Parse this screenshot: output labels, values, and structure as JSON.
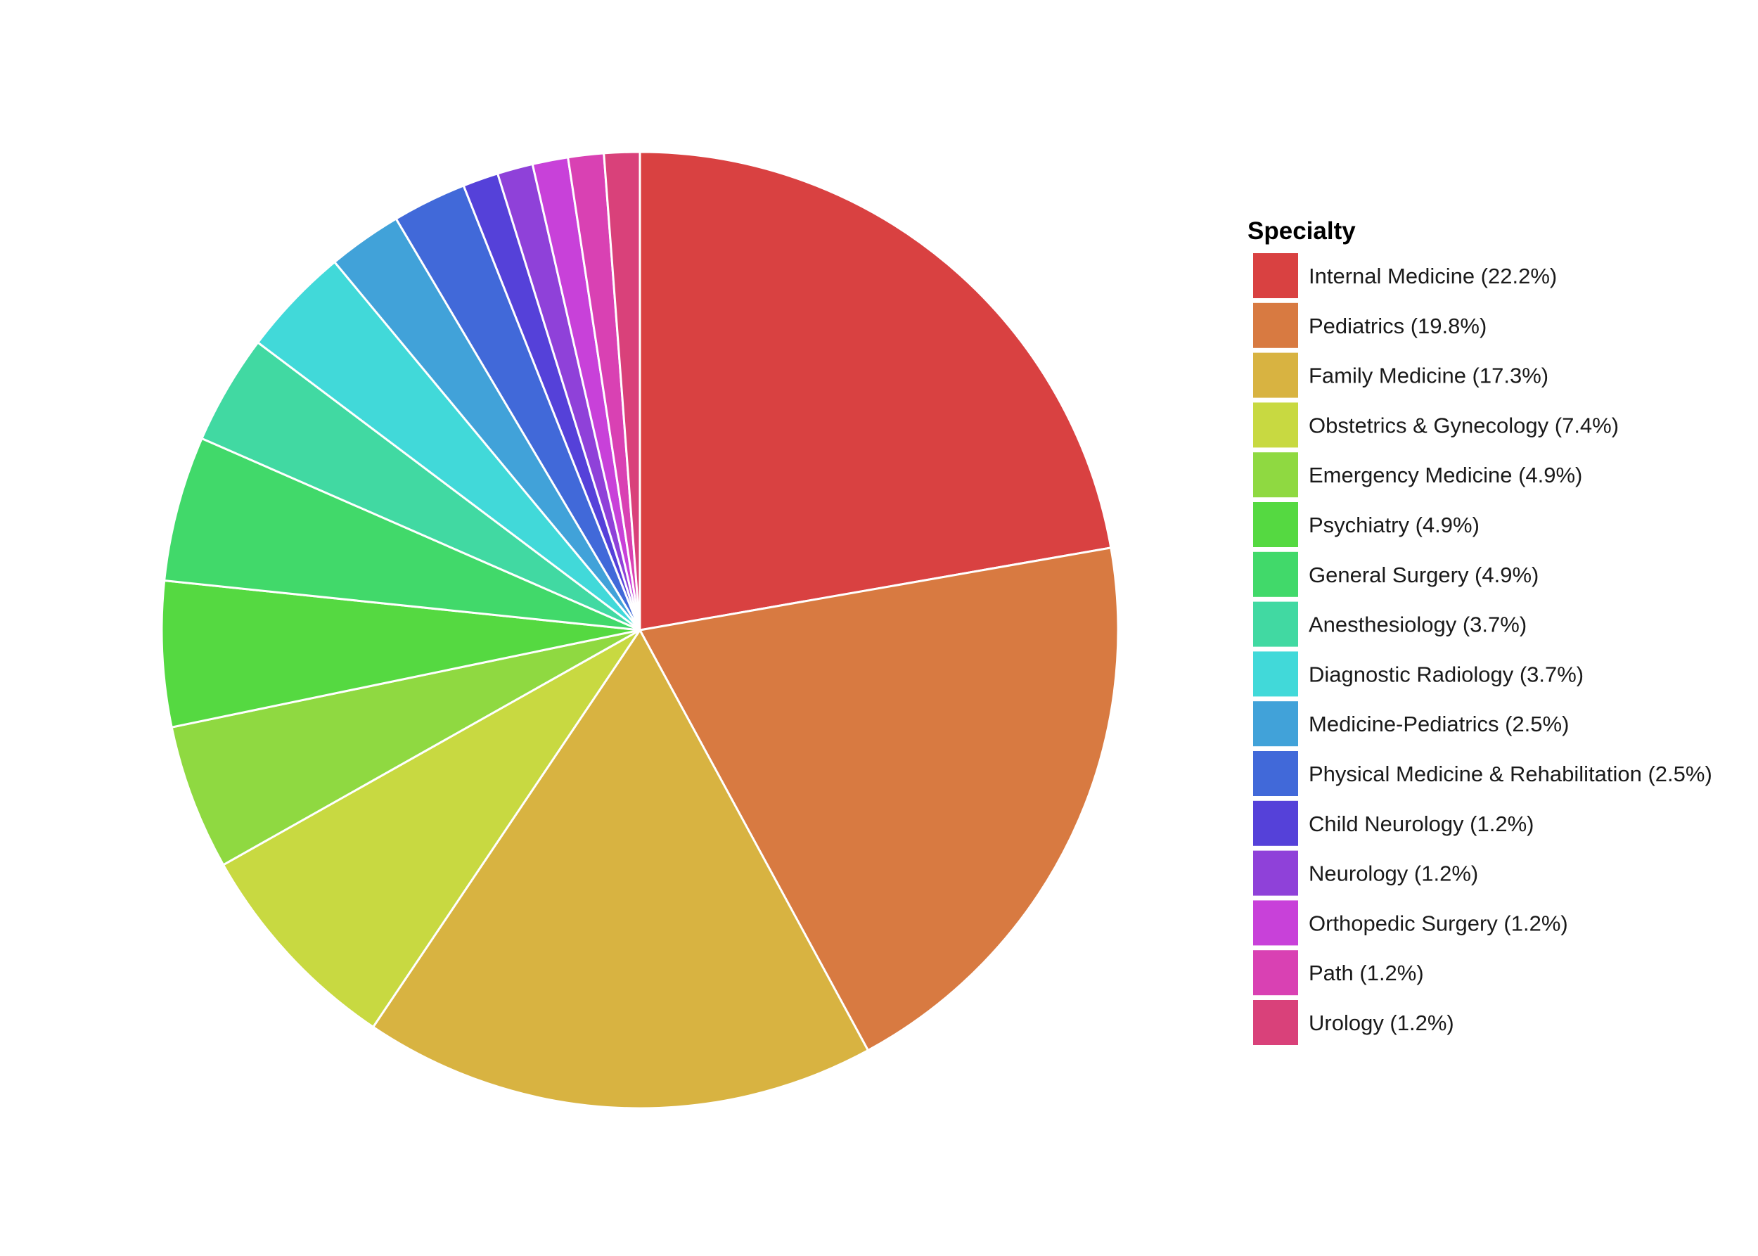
{
  "chart_data": {
    "type": "pie",
    "title": "",
    "legend_title": "Specialty",
    "legend_position": "right",
    "start": "top, clockwise",
    "slices": [
      {
        "label": "Internal Medicine",
        "legend_label": "Internal Medicine (22.2%)",
        "value": 22.2,
        "color": "#d94141"
      },
      {
        "label": "Pediatrics",
        "legend_label": "Pediatrics (19.8%)",
        "value": 19.8,
        "color": "#d87a41"
      },
      {
        "label": "Family Medicine",
        "legend_label": "Family Medicine (17.3%)",
        "value": 17.3,
        "color": "#d8b341"
      },
      {
        "label": "Obstetrics & Gynecology",
        "legend_label": "Obstetrics & Gynecology (7.4%)",
        "value": 7.4,
        "color": "#c8d941"
      },
      {
        "label": "Emergency Medicine",
        "legend_label": "Emergency Medicine (4.9%)",
        "value": 4.9,
        "color": "#8fd941"
      },
      {
        "label": "Psychiatry",
        "legend_label": "Psychiatry (4.9%)",
        "value": 4.9,
        "color": "#55d941"
      },
      {
        "label": "General Surgery",
        "legend_label": "General Surgery (4.9%)",
        "value": 4.9,
        "color": "#41d96a"
      },
      {
        "label": "Anesthesiology",
        "legend_label": "Anesthesiology (3.7%)",
        "value": 3.7,
        "color": "#41d9a2"
      },
      {
        "label": "Diagnostic Radiology",
        "legend_label": "Diagnostic Radiology (3.7%)",
        "value": 3.7,
        "color": "#41d9d9"
      },
      {
        "label": "Medicine-Pediatrics",
        "legend_label": "Medicine-Pediatrics (2.5%)",
        "value": 2.5,
        "color": "#41a2d9"
      },
      {
        "label": "Physical Medicine & Rehabilitation",
        "legend_label": "Physical Medicine & Rehabilitation (2.5%)",
        "value": 2.5,
        "color": "#4169d9"
      },
      {
        "label": "Child Neurology",
        "legend_label": "Child Neurology (1.2%)",
        "value": 1.2,
        "color": "#5541d9"
      },
      {
        "label": "Neurology",
        "legend_label": "Neurology (1.2%)",
        "value": 1.2,
        "color": "#8f41d9"
      },
      {
        "label": "Orthopedic Surgery",
        "legend_label": "Orthopedic Surgery (1.2%)",
        "value": 1.2,
        "color": "#c841d9"
      },
      {
        "label": "Path",
        "legend_label": "Path (1.2%)",
        "value": 1.2,
        "color": "#d941b3"
      },
      {
        "label": "Urology",
        "legend_label": "Urology (1.2%)",
        "value": 1.2,
        "color": "#d9417a"
      }
    ]
  }
}
